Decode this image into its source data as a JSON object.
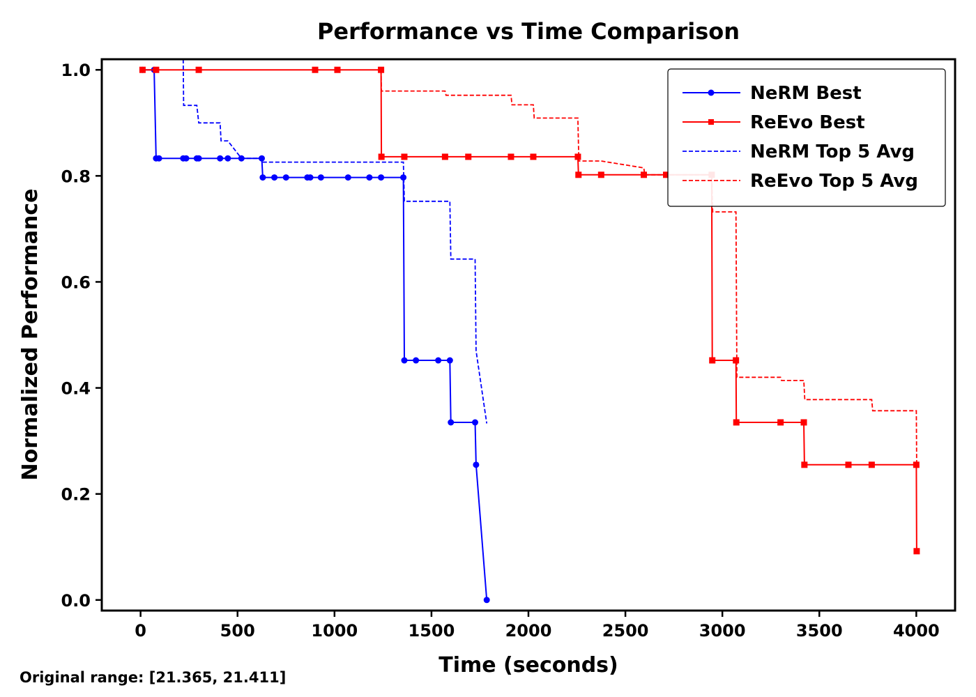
{
  "chart_data": {
    "type": "line",
    "title": "Performance vs Time Comparison",
    "xlabel": "Time (seconds)",
    "ylabel": "Normalized Performance",
    "xlim": [
      -200,
      4200
    ],
    "ylim": [
      -0.02,
      1.02
    ],
    "xticks": [
      0,
      500,
      1000,
      1500,
      2000,
      2500,
      3000,
      3500,
      4000
    ],
    "yticks": [
      0.0,
      0.2,
      0.4,
      0.6,
      0.8,
      1.0
    ],
    "ytick_labels": [
      "0.0",
      "0.2",
      "0.4",
      "0.6",
      "0.8",
      "1.0"
    ],
    "grid": false,
    "legend_position": "top-right",
    "series": [
      {
        "name": "NeRM Best",
        "color": "#0000ff",
        "style": "solid",
        "marker": "circle",
        "x": [
          10,
          70,
          80,
          95,
          220,
          235,
          290,
          300,
          410,
          450,
          520,
          625,
          630,
          690,
          750,
          860,
          875,
          930,
          1070,
          1180,
          1240,
          1355,
          1360,
          1420,
          1535,
          1595,
          1600,
          1725,
          1730,
          1785
        ],
        "y": [
          1.0,
          1.0,
          0.833,
          0.833,
          0.833,
          0.833,
          0.833,
          0.833,
          0.833,
          0.833,
          0.833,
          0.833,
          0.797,
          0.797,
          0.797,
          0.797,
          0.797,
          0.797,
          0.797,
          0.797,
          0.797,
          0.797,
          0.452,
          0.452,
          0.452,
          0.452,
          0.335,
          0.335,
          0.255,
          0.0
        ]
      },
      {
        "name": "ReEvo Best",
        "color": "#ff0000",
        "style": "solid",
        "marker": "square",
        "x": [
          10,
          80,
          300,
          900,
          1015,
          1240,
          1242,
          1360,
          1570,
          1690,
          1910,
          2025,
          2255,
          2258,
          2375,
          2595,
          2710,
          2945,
          2948,
          3070,
          3072,
          3300,
          3420,
          3423,
          3650,
          3770,
          4000,
          4002
        ],
        "y": [
          1.0,
          1.0,
          1.0,
          1.0,
          1.0,
          1.0,
          0.836,
          0.836,
          0.836,
          0.836,
          0.836,
          0.836,
          0.836,
          0.802,
          0.802,
          0.802,
          0.802,
          0.802,
          0.452,
          0.452,
          0.335,
          0.335,
          0.335,
          0.255,
          0.255,
          0.255,
          0.255,
          0.092
        ]
      },
      {
        "name": "NeRM Top 5 Avg",
        "color": "#0000ff",
        "style": "dashed",
        "marker": "none",
        "x": [
          220,
          222,
          290,
          300,
          410,
          415,
          450,
          520,
          625,
          630,
          1355,
          1360,
          1595,
          1600,
          1725,
          1730,
          1785
        ],
        "y": [
          1.02,
          0.933,
          0.933,
          0.9,
          0.9,
          0.866,
          0.866,
          0.833,
          0.833,
          0.826,
          0.826,
          0.752,
          0.752,
          0.643,
          0.643,
          0.47,
          0.333
        ]
      },
      {
        "name": "ReEvo Top 5 Avg",
        "color": "#ff0000",
        "style": "dashed",
        "marker": "none",
        "x": [
          1240,
          1242,
          1570,
          1575,
          1910,
          1915,
          2025,
          2030,
          2255,
          2260,
          2375,
          2595,
          2600,
          2945,
          2950,
          3070,
          3075,
          3300,
          3305,
          3420,
          3425,
          3770,
          3775,
          4000,
          4002
        ],
        "y": [
          1.0,
          0.96,
          0.96,
          0.952,
          0.952,
          0.934,
          0.934,
          0.909,
          0.909,
          0.828,
          0.828,
          0.815,
          0.802,
          0.802,
          0.732,
          0.732,
          0.42,
          0.42,
          0.414,
          0.414,
          0.378,
          0.378,
          0.357,
          0.357,
          0.255
        ]
      }
    ]
  },
  "footnote": "Original range: [21.365, 21.411]"
}
